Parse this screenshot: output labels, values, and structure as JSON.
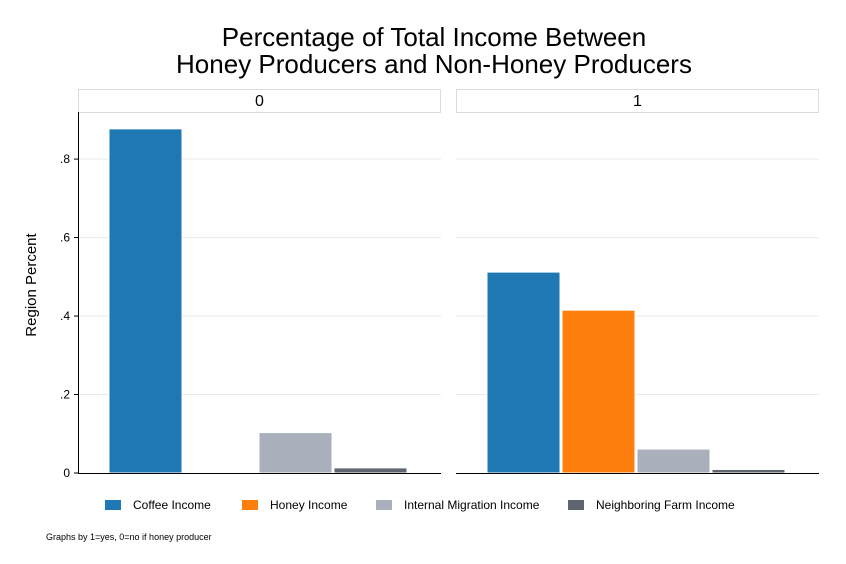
{
  "chart_data": {
    "type": "bar",
    "title_lines": [
      "Percentage of Total Income Between",
      "Honey Producers and Non-Honey Producers"
    ],
    "ylabel": "Region Percent",
    "ylim": [
      0,
      0.92
    ],
    "y_ticks": [
      0,
      0.2,
      0.4,
      0.6,
      0.8
    ],
    "y_tick_labels": [
      "0",
      ".2",
      ".4",
      ".6",
      ".8"
    ],
    "grid": true,
    "legend_position": "bottom",
    "note": "Graphs by 1=yes, 0=no if honey producer",
    "series": [
      {
        "name": "Coffee Income",
        "color": "#1f77b4"
      },
      {
        "name": "Honey Income",
        "color": "#ff7f0e"
      },
      {
        "name": "Internal Migration Income",
        "color": "#a9b0bc"
      },
      {
        "name": "Neighboring Farm Income",
        "color": "#5f6670"
      }
    ],
    "panels": [
      {
        "label": "0",
        "values": [
          0.877,
          0.0,
          0.103,
          0.013
        ]
      },
      {
        "label": "1",
        "values": [
          0.512,
          0.415,
          0.061,
          0.009
        ]
      }
    ]
  }
}
